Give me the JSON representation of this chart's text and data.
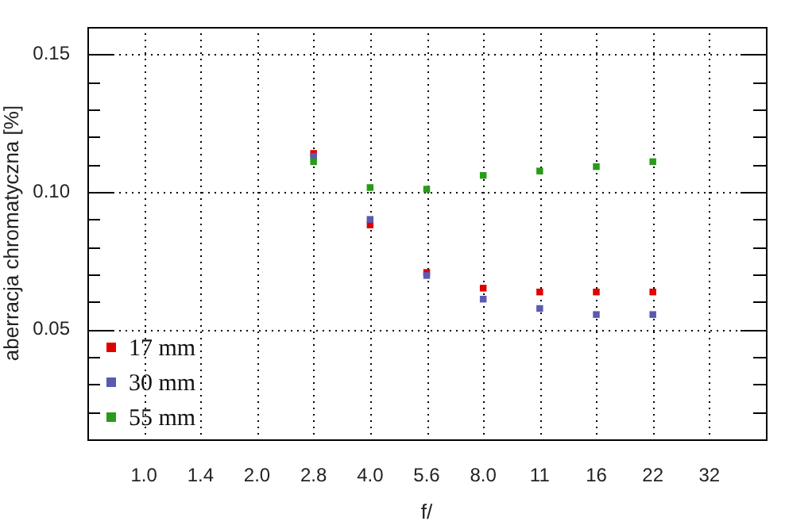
{
  "chart_data": {
    "type": "scatter",
    "xlabel": "f/",
    "ylabel": "aberracja chromatyczna [%]",
    "categories": [
      null,
      "1.0",
      "1.4",
      "2.0",
      "2.8",
      "4.0",
      "5.6",
      "8.0",
      "11",
      "16",
      "22",
      "32",
      null
    ],
    "series": [
      {
        "name": "17 mm",
        "color": "#e00000",
        "values": [
          null,
          null,
          null,
          null,
          0.114,
          0.088,
          0.0707,
          0.065,
          0.0636,
          0.0636,
          0.0636,
          null,
          null
        ]
      },
      {
        "name": "30 mm",
        "color": "#5a5ab0",
        "values": [
          null,
          null,
          null,
          null,
          0.113,
          0.09,
          0.0696,
          0.061,
          0.0576,
          0.0554,
          0.0554,
          null,
          null
        ]
      },
      {
        "name": "55 mm",
        "color": "#2a9a1a",
        "values": [
          null,
          null,
          null,
          null,
          0.111,
          0.1016,
          0.101,
          0.106,
          0.1076,
          0.1092,
          0.111,
          null,
          null
        ]
      }
    ],
    "ylim": [
      0.01,
      0.16
    ],
    "yticks": [
      {
        "value": 0.02,
        "label": null
      },
      {
        "value": 0.03,
        "label": null
      },
      {
        "value": 0.04,
        "label": null
      },
      {
        "value": 0.05,
        "label": "0.05"
      },
      {
        "value": 0.06,
        "label": null
      },
      {
        "value": 0.07,
        "label": null
      },
      {
        "value": 0.08,
        "label": null
      },
      {
        "value": 0.09,
        "label": null
      },
      {
        "value": 0.1,
        "label": "0.10"
      },
      {
        "value": 0.11,
        "label": null
      },
      {
        "value": 0.12,
        "label": null
      },
      {
        "value": 0.13,
        "label": null
      },
      {
        "value": 0.14,
        "label": null
      },
      {
        "value": 0.15,
        "label": "0.15"
      }
    ],
    "grid": true,
    "legend": "bottom left",
    "marker": "square"
  }
}
